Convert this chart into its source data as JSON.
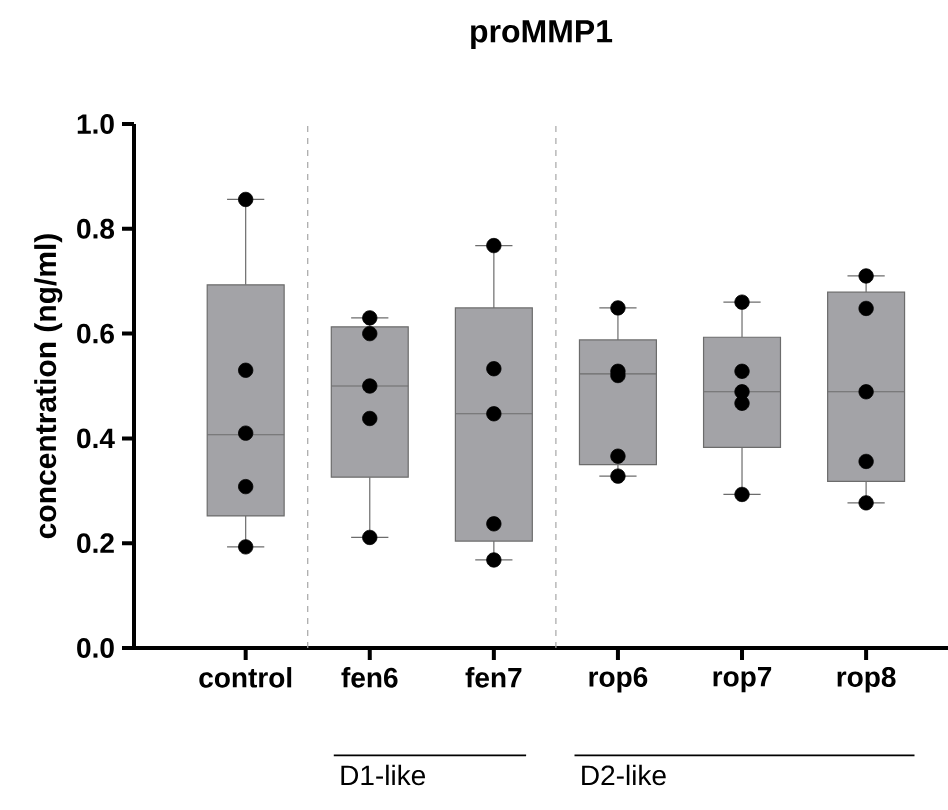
{
  "chart_data": {
    "type": "box",
    "title": "proMMP1",
    "ylabel": "concentration (ng/ml)",
    "categories": [
      "control",
      "fen6",
      "fen7",
      "rop6",
      "rop7",
      "rop8"
    ],
    "ylim": [
      0,
      1.0
    ],
    "yticks": [
      {
        "value": 0,
        "label": "0.0"
      },
      {
        "value": 0.2,
        "label": "0.2"
      },
      {
        "value": 0.4,
        "label": "0.4"
      },
      {
        "value": 0.6,
        "label": "0.6"
      },
      {
        "value": 0.8,
        "label": "0.8"
      },
      {
        "value": 1.0,
        "label": "1.0"
      }
    ],
    "series": [
      {
        "color": "#a3a3a7",
        "boxes": [
          {
            "low": 0.193,
            "q1": 0.252,
            "median": 0.407,
            "q3": 0.693,
            "high": 0.856
          },
          {
            "low": 0.211,
            "q1": 0.326,
            "median": 0.5,
            "q3": 0.613,
            "high": 0.63
          },
          {
            "low": 0.168,
            "q1": 0.204,
            "median": 0.447,
            "q3": 0.649,
            "high": 0.768
          },
          {
            "low": 0.328,
            "q1": 0.35,
            "median": 0.523,
            "q3": 0.588,
            "high": 0.649
          },
          {
            "low": 0.293,
            "q1": 0.383,
            "median": 0.489,
            "q3": 0.593,
            "high": 0.66
          },
          {
            "low": 0.277,
            "q1": 0.318,
            "median": 0.489,
            "q3": 0.679,
            "high": 0.71
          }
        ]
      },
      {
        "type": "scatter",
        "color": "#000000",
        "marker": "circle",
        "x": [
          "control",
          "control",
          "control",
          "control",
          "control",
          "fen6",
          "fen6",
          "fen6",
          "fen6",
          "fen6",
          "fen7",
          "fen7",
          "fen7",
          "fen7",
          "fen7",
          "rop6",
          "rop6",
          "rop6",
          "rop6",
          "rop6",
          "rop7",
          "rop7",
          "rop7",
          "rop7",
          "rop7",
          "rop8",
          "rop8",
          "rop8",
          "rop8",
          "rop8"
        ],
        "values": [
          0.856,
          0.53,
          0.41,
          0.308,
          0.193,
          0.63,
          0.6,
          0.5,
          0.438,
          0.211,
          0.768,
          0.533,
          0.447,
          0.237,
          0.168,
          0.649,
          0.528,
          0.52,
          0.366,
          0.328,
          0.66,
          0.528,
          0.489,
          0.467,
          0.293,
          0.71,
          0.648,
          0.489,
          0.356,
          0.277
        ]
      }
    ],
    "annotations": [
      "D1-like",
      "D2-like"
    ]
  }
}
